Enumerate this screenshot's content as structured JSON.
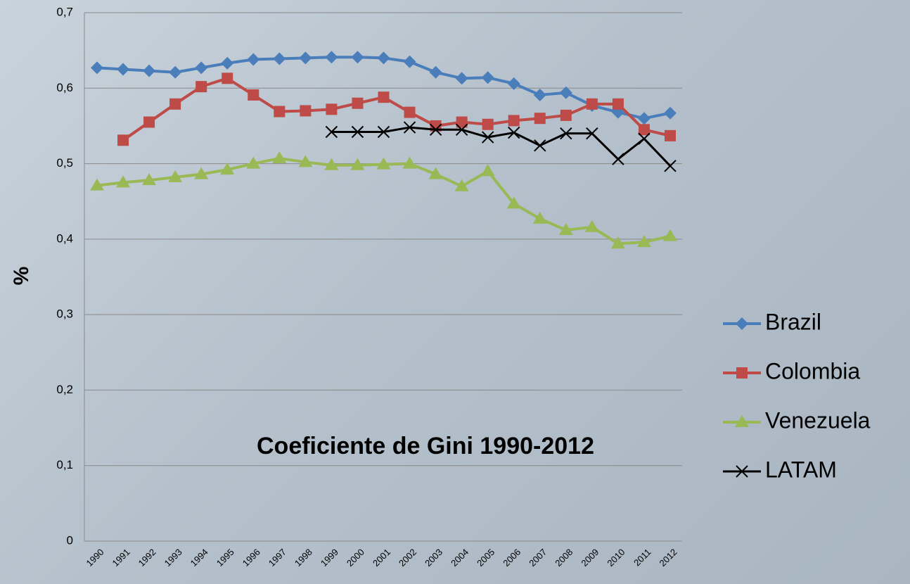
{
  "chart_data": {
    "type": "line",
    "title": "Coeficiente de Gini 1990-2012",
    "y_label": "%",
    "categories": [
      "1990",
      "1991",
      "1992",
      "1993",
      "1994",
      "1995",
      "1996",
      "1997",
      "1998",
      "1999",
      "2000",
      "2001",
      "2002",
      "2003",
      "2004",
      "2005",
      "2006",
      "2007",
      "2008",
      "2009",
      "2010",
      "2011",
      "2012"
    ],
    "series": [
      {
        "name": "Brazil",
        "color": "#4a7ebb",
        "marker": "diamond",
        "values": [
          0.627,
          0.625,
          0.623,
          0.621,
          0.627,
          0.633,
          0.638,
          0.639,
          0.64,
          0.641,
          0.641,
          0.64,
          0.635,
          0.621,
          0.613,
          0.614,
          0.606,
          0.591,
          0.594,
          0.577,
          0.568,
          0.56,
          0.567
        ]
      },
      {
        "name": "Colombia",
        "color": "#be4b48",
        "marker": "square",
        "values": [
          null,
          0.531,
          0.555,
          0.579,
          0.602,
          0.613,
          0.591,
          0.569,
          0.57,
          0.572,
          0.58,
          0.588,
          0.568,
          0.55,
          0.555,
          0.552,
          0.557,
          0.56,
          0.564,
          0.579,
          0.579,
          0.545,
          0.537
        ]
      },
      {
        "name": "Venezuela",
        "color": "#98b954",
        "marker": "triangle",
        "values": [
          0.471,
          0.475,
          0.478,
          0.482,
          0.486,
          0.492,
          0.5,
          0.507,
          0.502,
          0.498,
          0.498,
          0.499,
          0.5,
          0.486,
          0.47,
          0.49,
          0.447,
          0.427,
          0.412,
          0.416,
          0.394,
          0.396,
          0.404
        ]
      },
      {
        "name": "LATAM",
        "color": "#000000",
        "marker": "x",
        "values": [
          null,
          null,
          null,
          null,
          null,
          null,
          null,
          null,
          null,
          0.542,
          0.542,
          0.542,
          0.548,
          0.545,
          0.545,
          0.535,
          0.541,
          0.524,
          0.54,
          0.54,
          0.506,
          0.533,
          0.497
        ]
      }
    ],
    "ylim": [
      0,
      0.7
    ],
    "yticks": [
      0,
      {
        "value": 0.1,
        "label": "0,1"
      },
      {
        "value": 0.2,
        "label": "0,2"
      },
      {
        "value": 0.3,
        "label": "0,3"
      },
      {
        "value": 0.4,
        "label": "0,4"
      },
      {
        "value": 0.5,
        "label": "0,5"
      },
      {
        "value": 0.6,
        "label": "0,6"
      },
      {
        "value": 0.7,
        "label": "0,7"
      }
    ],
    "grid": true,
    "legend": "right"
  }
}
